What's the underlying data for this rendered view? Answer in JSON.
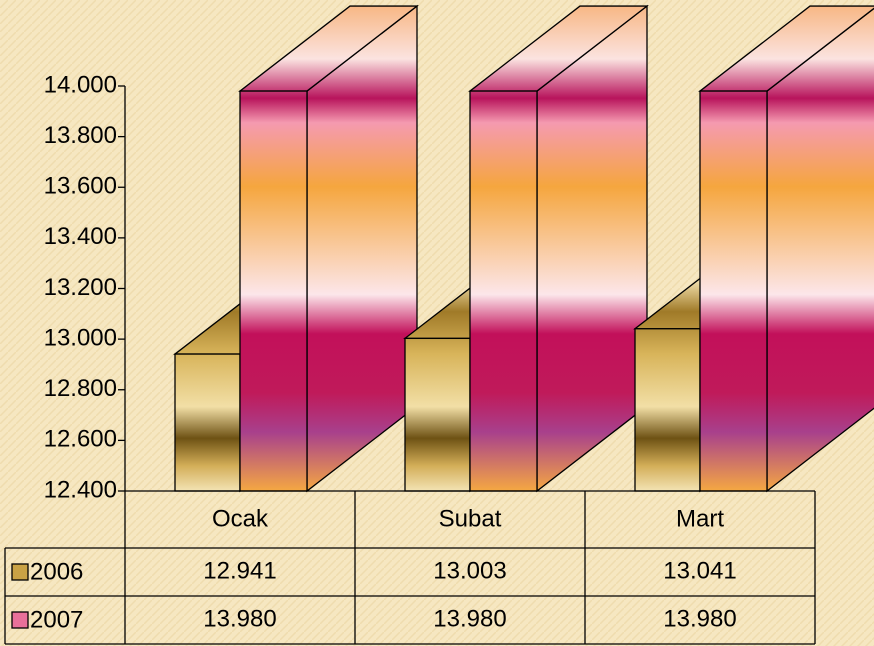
{
  "chart_data": {
    "type": "bar3d",
    "categories": [
      "Ocak",
      "Subat",
      "Mart"
    ],
    "series": [
      {
        "name": "2006",
        "color": "#c9a245",
        "values": [
          12941,
          13003,
          13041
        ],
        "value_labels": [
          "12.941",
          "13.003",
          "13.041"
        ]
      },
      {
        "name": "2007",
        "color": "#e8709a",
        "values": [
          13980,
          13980,
          13980
        ],
        "value_labels": [
          "13.980",
          "13.980",
          "13.980"
        ]
      }
    ],
    "ylim": [
      12400,
      14000
    ],
    "yticks": [
      {
        "value": 12400,
        "label": "12.400"
      },
      {
        "value": 12600,
        "label": "12.600"
      },
      {
        "value": 12800,
        "label": "12.800"
      },
      {
        "value": 13000,
        "label": "13.000"
      },
      {
        "value": 13200,
        "label": "13.200"
      },
      {
        "value": 13400,
        "label": "13.400"
      },
      {
        "value": 13600,
        "label": "13.600"
      },
      {
        "value": 13800,
        "label": "13.800"
      },
      {
        "value": 14000,
        "label": "14.000"
      }
    ],
    "grid": false
  }
}
